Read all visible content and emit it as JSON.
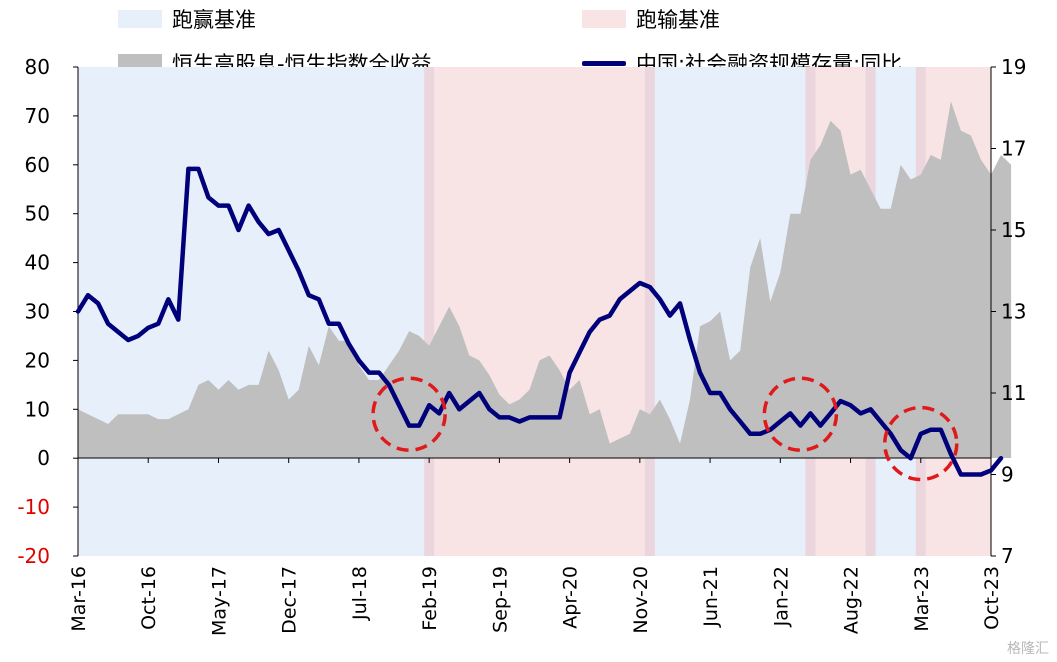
{
  "chart_data": {
    "type": "area",
    "legend": {
      "outperform": "跑赢基准",
      "underperform": "跑输基准",
      "area_series": "恒生高股息-恒生指数全收益",
      "line_series": "中国:社会融资规模存量:同比"
    },
    "colors": {
      "outperform": "#e7f0fa",
      "underperform": "#f8e4e5",
      "boundary": "#ebd6de",
      "area": "#bfbfbf",
      "line": "#00007a",
      "circle": "#e01a1a",
      "negative_tick": "#e00000"
    },
    "left_axis": {
      "min": -20,
      "max": 80,
      "ticks": [
        "-20",
        "-10",
        "0",
        "10",
        "20",
        "30",
        "40",
        "50",
        "60",
        "70",
        "80"
      ]
    },
    "right_axis": {
      "min": 7,
      "max": 19,
      "ticks": [
        "7",
        "9",
        "11",
        "13",
        "15",
        "17",
        "19"
      ]
    },
    "x_start": "2016-03",
    "x_end": "2023-10",
    "x_ticks": [
      "Mar-16",
      "Oct-16",
      "May-17",
      "Dec-17",
      "Jul-18",
      "Feb-19",
      "Sep-19",
      "Apr-20",
      "Nov-20",
      "Jun-21",
      "Jan-22",
      "Aug-22",
      "Mar-23",
      "Oct-23"
    ],
    "regimes": [
      {
        "start": "2016-03",
        "end": "2019-02",
        "type": "outperform"
      },
      {
        "start": "2019-02",
        "end": "2020-12",
        "type": "underperform"
      },
      {
        "start": "2020-12",
        "end": "2022-04",
        "type": "outperform"
      },
      {
        "start": "2022-04",
        "end": "2022-10",
        "type": "underperform"
      },
      {
        "start": "2022-10",
        "end": "2023-03",
        "type": "outperform"
      },
      {
        "start": "2023-03",
        "end": "2023-10",
        "type": "underperform"
      }
    ],
    "series": [
      {
        "name": "恒生高股息-恒生指数全收益",
        "axis": "left",
        "kind": "area",
        "values": [
          10,
          9,
          8,
          7,
          9,
          9,
          9,
          9,
          8,
          8,
          9,
          10,
          15,
          16,
          14,
          16,
          14,
          15,
          15,
          22,
          18,
          12,
          14,
          23,
          19,
          27,
          24,
          24,
          19,
          16,
          16,
          19,
          22,
          26,
          25,
          23,
          27,
          31,
          27,
          21,
          20,
          17,
          13,
          11,
          12,
          14,
          20,
          21,
          18,
          14,
          16,
          9,
          10,
          3,
          4,
          5,
          10,
          9,
          12,
          8,
          3,
          12,
          27,
          28,
          30,
          20,
          22,
          39,
          45,
          32,
          38,
          50,
          50,
          61,
          64,
          69,
          67,
          58,
          59,
          55,
          51,
          51,
          60,
          57,
          58,
          62,
          61,
          73,
          67,
          66,
          61,
          58,
          62,
          60
        ]
      },
      {
        "name": "中国:社会融资规模存量:同比",
        "axis": "right",
        "kind": "line",
        "values": [
          13.0,
          13.4,
          13.2,
          12.7,
          12.5,
          12.3,
          12.4,
          12.6,
          12.7,
          13.3,
          12.8,
          16.5,
          16.5,
          15.8,
          15.6,
          15.6,
          15.0,
          15.6,
          15.2,
          14.9,
          15.0,
          14.5,
          14.0,
          13.4,
          13.3,
          12.7,
          12.7,
          12.2,
          11.8,
          11.5,
          11.5,
          11.2,
          10.7,
          10.2,
          10.2,
          10.7,
          10.5,
          11.0,
          10.6,
          10.8,
          11.0,
          10.6,
          10.4,
          10.4,
          10.3,
          10.4,
          10.4,
          10.4,
          10.4,
          11.5,
          12.0,
          12.5,
          12.8,
          12.9,
          13.3,
          13.5,
          13.7,
          13.6,
          13.3,
          12.9,
          13.2,
          12.3,
          11.5,
          11.0,
          11.0,
          10.6,
          10.3,
          10.0,
          10.0,
          10.1,
          10.3,
          10.5,
          10.2,
          10.5,
          10.2,
          10.5,
          10.8,
          10.7,
          10.5,
          10.6,
          10.3,
          10.0,
          9.6,
          9.4,
          10.0,
          10.1,
          10.1,
          9.5,
          9.0,
          9.0,
          9.0,
          9.1,
          9.4
        ]
      }
    ],
    "annotations": [
      {
        "shape": "dashed-circle",
        "date": "2018-12",
        "value_left": 9
      },
      {
        "shape": "dashed-circle",
        "date": "2022-03",
        "value_left": 9
      },
      {
        "shape": "dashed-circle",
        "date": "2023-03",
        "value_left": 3
      }
    ]
  },
  "watermark": "格隆汇"
}
